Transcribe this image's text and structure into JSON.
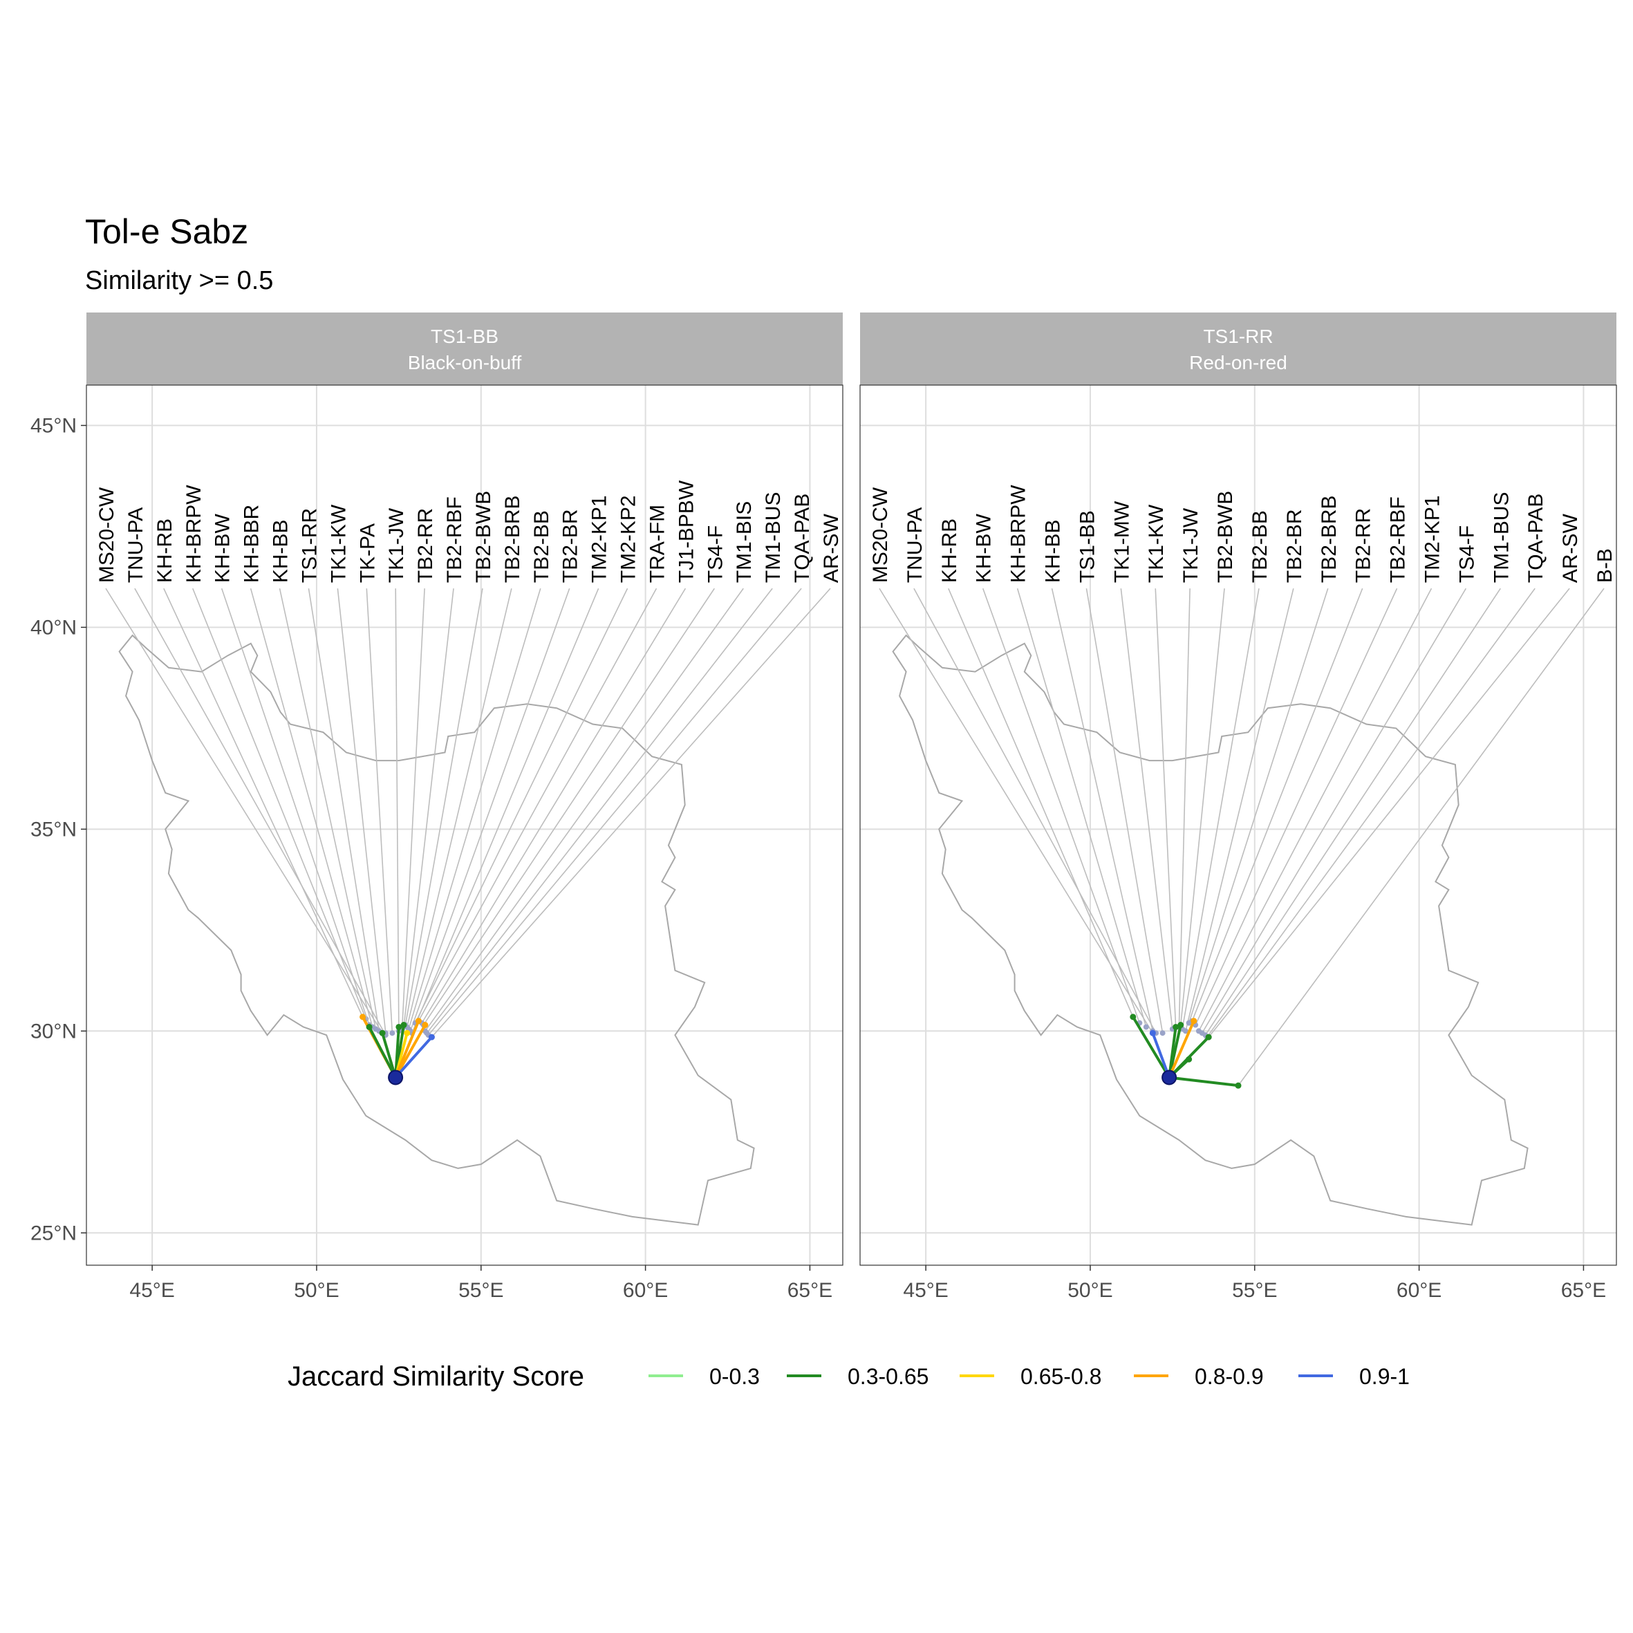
{
  "title": "Tol-e Sabz",
  "subtitle": "Similarity >= 0.5",
  "colors": {
    "strip_bg": "#b3b3b3",
    "grid": "#dedede",
    "border_outline": "#a8a8a8",
    "leader": "#bdbdbd",
    "source_point": "#1a2a9c",
    "0-0.3": "#90ee90",
    "0.3-0.65": "#228b22",
    "0.65-0.8": "#ffd700",
    "0.8-0.9": "#ffa500",
    "0.9-1": "#4169e1"
  },
  "axes": {
    "x_ticks": [
      "45°E",
      "50°E",
      "55°E",
      "60°E",
      "65°E"
    ],
    "y_ticks": [
      "45°N",
      "40°N",
      "35°N",
      "30°N",
      "25°N"
    ]
  },
  "legend": {
    "title": "Jaccard Similarity Score",
    "items": [
      {
        "label": "0-0.3",
        "color": "#90ee90"
      },
      {
        "label": "0.3-0.65",
        "color": "#228b22"
      },
      {
        "label": "0.65-0.8",
        "color": "#ffd700"
      },
      {
        "label": "0.8-0.9",
        "color": "#ffa500"
      },
      {
        "label": "0.9-1",
        "color": "#4169e1"
      }
    ]
  },
  "chart_data": {
    "type": "map",
    "x_range_lon": [
      43,
      66
    ],
    "y_range_lat": [
      24.2,
      46
    ],
    "source": {
      "lon": 52.4,
      "lat": 28.85
    },
    "label_baseline_lat": 41.1,
    "panels": [
      {
        "strip_line1": "TS1-BB",
        "strip_line2": "Black-on-buff",
        "labels": [
          {
            "text": "MS20-CW",
            "target": [
              52.0,
              29.95
            ]
          },
          {
            "text": "TNU-PA",
            "target": [
              52.1,
              29.9
            ]
          },
          {
            "text": "KH-RB",
            "target": [
              51.4,
              30.35
            ]
          },
          {
            "text": "KH-BRPW",
            "target": [
              51.5,
              30.3
            ]
          },
          {
            "text": "KH-BW",
            "target": [
              51.6,
              30.15
            ]
          },
          {
            "text": "KH-BBR",
            "target": [
              51.7,
              30.1
            ]
          },
          {
            "text": "KH-BB",
            "target": [
              51.8,
              30.05
            ]
          },
          {
            "text": "TS1-RR",
            "target": [
              51.9,
              30.0
            ]
          },
          {
            "text": "TK1-KW",
            "target": [
              52.1,
              29.95
            ]
          },
          {
            "text": "TK-PA",
            "target": [
              52.3,
              29.95
            ]
          },
          {
            "text": "TK1-JW",
            "target": [
              52.5,
              30.0
            ]
          },
          {
            "text": "TB2-RR",
            "target": [
              52.6,
              30.05
            ]
          },
          {
            "text": "TB2-RBF",
            "target": [
              52.65,
              30.1
            ]
          },
          {
            "text": "TB2-BWB",
            "target": [
              52.7,
              30.15
            ]
          },
          {
            "text": "TB2-BRB",
            "target": [
              52.75,
              30.1
            ]
          },
          {
            "text": "TB2-BB",
            "target": [
              52.8,
              30.05
            ]
          },
          {
            "text": "TB2-BR",
            "target": [
              52.85,
              30.0
            ]
          },
          {
            "text": "TM2-KP1",
            "target": [
              52.9,
              29.95
            ]
          },
          {
            "text": "TM2-KP2",
            "target": [
              53.0,
              30.2
            ]
          },
          {
            "text": "TRA-FM",
            "target": [
              53.1,
              30.25
            ]
          },
          {
            "text": "TJ1-BPBW",
            "target": [
              53.2,
              30.2
            ]
          },
          {
            "text": "TS4-F",
            "target": [
              53.25,
              30.15
            ]
          },
          {
            "text": "TM1-BIS",
            "target": [
              53.3,
              30.0
            ]
          },
          {
            "text": "TM1-BUS",
            "target": [
              53.35,
              29.95
            ]
          },
          {
            "text": "TQA-PAB",
            "target": [
              53.4,
              29.9
            ]
          },
          {
            "text": "AR-SW",
            "target": [
              53.5,
              29.85
            ]
          }
        ],
        "edges": [
          {
            "to": [
              51.4,
              30.35
            ],
            "class": "0.8-0.9"
          },
          {
            "to": [
              51.6,
              30.1
            ],
            "class": "0.3-0.65"
          },
          {
            "to": [
              52.0,
              29.95
            ],
            "class": "0.3-0.65"
          },
          {
            "to": [
              52.5,
              30.1
            ],
            "class": "0.3-0.65"
          },
          {
            "to": [
              52.65,
              30.15
            ],
            "class": "0.3-0.65"
          },
          {
            "to": [
              52.75,
              29.95
            ],
            "class": "0.65-0.8"
          },
          {
            "to": [
              53.1,
              30.25
            ],
            "class": "0.8-0.9"
          },
          {
            "to": [
              53.3,
              30.15
            ],
            "class": "0.8-0.9"
          },
          {
            "to": [
              53.5,
              29.85
            ],
            "class": "0.9-1"
          }
        ]
      },
      {
        "strip_line1": "TS1-RR",
        "strip_line2": "Red-on-red",
        "labels": [
          {
            "text": "MS20-CW",
            "target": [
              51.9,
              29.95
            ]
          },
          {
            "text": "TNU-PA",
            "target": [
              52.0,
              29.95
            ]
          },
          {
            "text": "KH-RB",
            "target": [
              51.3,
              30.35
            ]
          },
          {
            "text": "KH-BW",
            "target": [
              51.5,
              30.2
            ]
          },
          {
            "text": "KH-BRPW",
            "target": [
              51.7,
              30.1
            ]
          },
          {
            "text": "KH-BB",
            "target": [
              51.9,
              30.0
            ]
          },
          {
            "text": "TS1-BB",
            "target": [
              52.2,
              29.95
            ]
          },
          {
            "text": "TK1-MW",
            "target": [
              52.5,
              30.05
            ]
          },
          {
            "text": "TK1-KW",
            "target": [
              52.6,
              30.1
            ]
          },
          {
            "text": "TK1-JW",
            "target": [
              52.7,
              30.1
            ]
          },
          {
            "text": "TB2-BWB",
            "target": [
              52.75,
              30.15
            ]
          },
          {
            "text": "TB2-BB",
            "target": [
              52.8,
              30.05
            ]
          },
          {
            "text": "TB2-BR",
            "target": [
              52.9,
              30.0
            ]
          },
          {
            "text": "TB2-BRB",
            "target": [
              53.0,
              30.2
            ]
          },
          {
            "text": "TB2-RR",
            "target": [
              53.1,
              30.25
            ]
          },
          {
            "text": "TB2-RBF",
            "target": [
              53.2,
              30.15
            ]
          },
          {
            "text": "TM2-KP1",
            "target": [
              53.3,
              30.0
            ]
          },
          {
            "text": "TS4-F",
            "target": [
              53.4,
              29.95
            ]
          },
          {
            "text": "TM1-BUS",
            "target": [
              53.5,
              29.9
            ]
          },
          {
            "text": "TQA-PAB",
            "target": [
              53.55,
              29.85
            ]
          },
          {
            "text": "AR-SW",
            "target": [
              53.6,
              29.85
            ]
          },
          {
            "text": "B-B",
            "target": [
              54.5,
              28.65
            ]
          }
        ],
        "edges": [
          {
            "to": [
              51.3,
              30.35
            ],
            "class": "0.3-0.65"
          },
          {
            "to": [
              51.9,
              29.95
            ],
            "class": "0.9-1"
          },
          {
            "to": [
              52.6,
              30.1
            ],
            "class": "0.3-0.65"
          },
          {
            "to": [
              52.75,
              30.15
            ],
            "class": "0.3-0.65"
          },
          {
            "to": [
              53.15,
              30.25
            ],
            "class": "0.8-0.9"
          },
          {
            "to": [
              53.6,
              29.85
            ],
            "class": "0.3-0.65"
          },
          {
            "to": [
              53.0,
              29.3
            ],
            "class": "0.3-0.65"
          },
          {
            "to": [
              54.5,
              28.65
            ],
            "class": "0.3-0.65"
          }
        ]
      }
    ]
  }
}
